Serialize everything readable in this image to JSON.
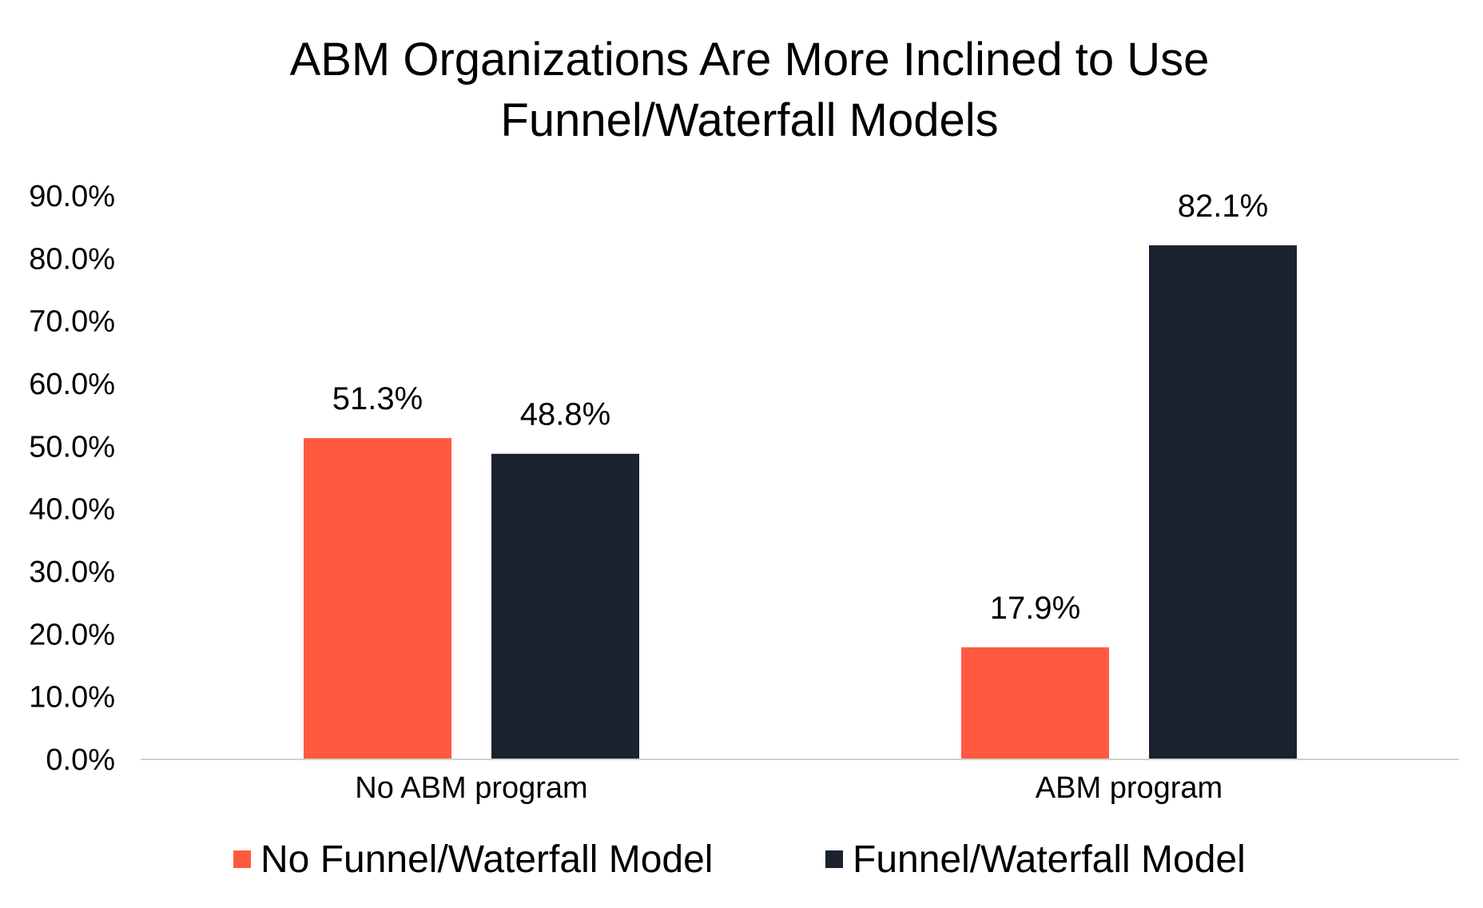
{
  "chart_data": {
    "type": "bar",
    "title_lines": [
      "ABM Organizations Are More Inclined to Use",
      "Funnel/Waterfall Models"
    ],
    "categories": [
      "No ABM program",
      "ABM program"
    ],
    "series": [
      {
        "name": "No Funnel/Waterfall Model",
        "color": "#FF5A40",
        "values": [
          51.3,
          17.9
        ],
        "labels": [
          "51.3%",
          "17.9%"
        ]
      },
      {
        "name": "Funnel/Waterfall Model",
        "color": "#1C2130",
        "values": [
          48.8,
          82.1
        ],
        "labels": [
          "48.8%",
          "82.1%"
        ]
      }
    ],
    "ylim": [
      0,
      90
    ],
    "yticks": [
      {
        "value": 0,
        "label": "0.0%"
      },
      {
        "value": 10,
        "label": "10.0%"
      },
      {
        "value": 20,
        "label": "20.0%"
      },
      {
        "value": 30,
        "label": "30.0%"
      },
      {
        "value": 40,
        "label": "40.0%"
      },
      {
        "value": 50,
        "label": "50.0%"
      },
      {
        "value": 60,
        "label": "60.0%"
      },
      {
        "value": 70,
        "label": "70.0%"
      },
      {
        "value": 80,
        "label": "80.0%"
      },
      {
        "value": 90,
        "label": "90.0%"
      }
    ],
    "xlabel": "",
    "ylabel": "",
    "grid": false,
    "legend_position": "bottom",
    "axis_color": "#D0D0D0"
  }
}
